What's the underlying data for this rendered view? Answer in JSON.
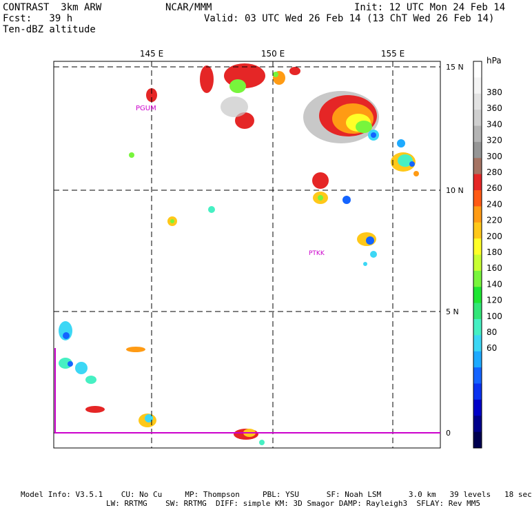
{
  "header": {
    "model_line": "CONTRAST  3km ARW",
    "forecast_line": "Fcst:   39 h",
    "field_line": "Ten-dBZ altitude",
    "center_line": "NCAR/MMM",
    "init_line": "Init: 12 UTC Mon 24 Feb 14",
    "valid_line": "Valid: 03 UTC Wed 26 Feb 14 (13 ChT Wed 26 Feb 14)"
  },
  "map": {
    "lon_labels": [
      "145 E",
      "150 E",
      "155 E"
    ],
    "lat_labels": [
      "15 N",
      "10 N",
      "5 N",
      "0"
    ],
    "stations": [
      "PGUM",
      "PTKK"
    ],
    "grid_color": "#000000",
    "station_color": "#cc00cc",
    "boundary_color": "#cc00cc"
  },
  "colorbar": {
    "unit": "hPa",
    "levels": [
      "380",
      "360",
      "340",
      "320",
      "300",
      "280",
      "260",
      "240",
      "220",
      "200",
      "180",
      "160",
      "140",
      "120",
      "100",
      "80",
      "60"
    ],
    "colors": [
      "#ffffff",
      "#f4f4f4",
      "#e2e2e2",
      "#cfcfcf",
      "#b4b4b4",
      "#969696",
      "#a57363",
      "#e52626",
      "#ff5a14",
      "#ff9b14",
      "#ffc819",
      "#ffff28",
      "#c8ff32",
      "#78f53c",
      "#1ee632",
      "#32e678",
      "#46f0c3",
      "#3cd7f5",
      "#1eaaff",
      "#1464ff",
      "#0a32f0",
      "#0000c8",
      "#00008c",
      "#000050"
    ]
  },
  "footer": {
    "line1": "Model Info: V3.5.1    CU: No Cu     MP: Thompson     PBL: YSU      SF: Noah LSM      3.0 km   39 levels   18 sec",
    "line2": "LW: RRTMG    SW: RRTMG  DIFF: simple KM: 3D Smagor DAMP: Rayleigh3  SFLAY: Rev MM5"
  }
}
